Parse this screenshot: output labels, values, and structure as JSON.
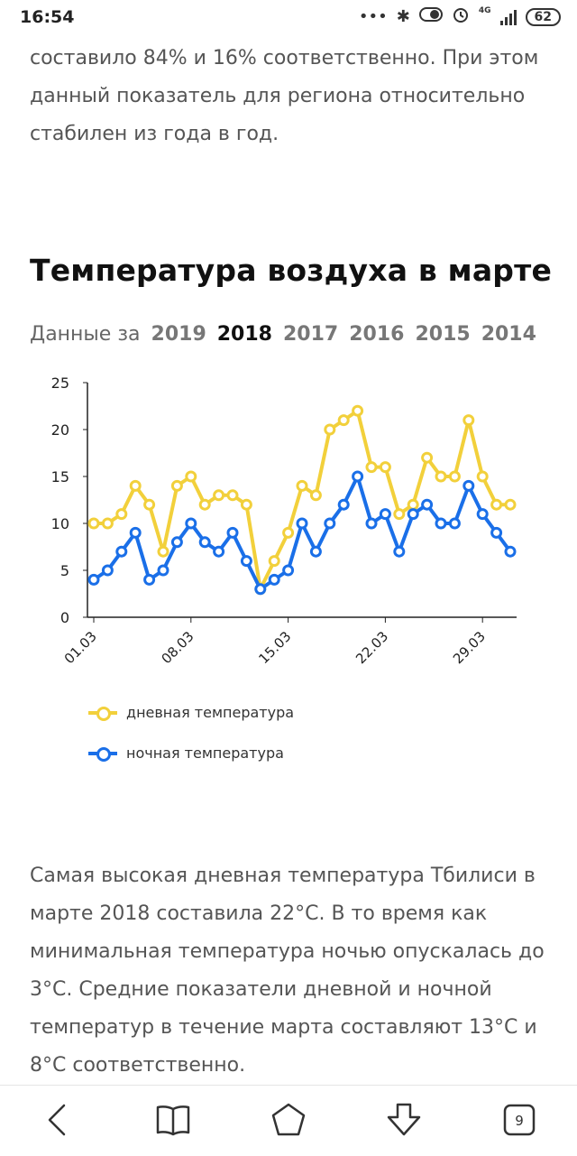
{
  "status": {
    "time": "16:54",
    "battery": "62",
    "network": "4G"
  },
  "text_top": "составило 84% и 16% соответственно. При этом данный показатель для региона относительно стабилен из года в год.",
  "heading": "Температура воздуха в марте",
  "year_selector": {
    "label": "Данные за",
    "years": [
      "2019",
      "2018",
      "2017",
      "2016",
      "2015",
      "2014"
    ],
    "selected": "2018"
  },
  "chart_data": {
    "type": "line",
    "x": [
      "01.03",
      "02.03",
      "03.03",
      "04.03",
      "05.03",
      "06.03",
      "07.03",
      "08.03",
      "09.03",
      "10.03",
      "11.03",
      "12.03",
      "13.03",
      "14.03",
      "15.03",
      "16.03",
      "17.03",
      "18.03",
      "19.03",
      "20.03",
      "21.03",
      "22.03",
      "23.03",
      "24.03",
      "25.03",
      "26.03",
      "27.03",
      "28.03",
      "29.03",
      "30.03",
      "31.03"
    ],
    "x_tick_labels": [
      "01.03",
      "08.03",
      "15.03",
      "22.03",
      "29.03"
    ],
    "ylim": [
      0,
      25
    ],
    "y_ticks": [
      0,
      5,
      10,
      15,
      20,
      25
    ],
    "legend_position": "bottom",
    "series": [
      {
        "name": "дневная температура",
        "color": "#f2d03b",
        "values": [
          10,
          10,
          11,
          14,
          12,
          7,
          14,
          15,
          12,
          13,
          13,
          12,
          3,
          6,
          9,
          14,
          13,
          20,
          21,
          22,
          16,
          16,
          11,
          12,
          17,
          15,
          15,
          21,
          15,
          12,
          12
        ]
      },
      {
        "name": "ночная температура",
        "color": "#1a6fe8",
        "values": [
          4,
          5,
          7,
          9,
          4,
          5,
          8,
          10,
          8,
          7,
          9,
          6,
          3,
          4,
          5,
          10,
          7,
          10,
          12,
          15,
          10,
          11,
          7,
          11,
          12,
          10,
          10,
          14,
          11,
          9,
          7
        ]
      }
    ]
  },
  "text_bottom": "Самая высокая дневная температура Тбилиси в марте 2018 составила 22°C. В то время как минимальная температура ночью опускалась до 3°C. Средние показатели дневной и ночной температур в течение марта составляют 13°C и 8°C соответственно.",
  "bottom_nav": {
    "tabs_count": "9",
    "icons": [
      "back-icon",
      "book-icon",
      "home-icon",
      "download-icon",
      "tabs-icon"
    ]
  }
}
